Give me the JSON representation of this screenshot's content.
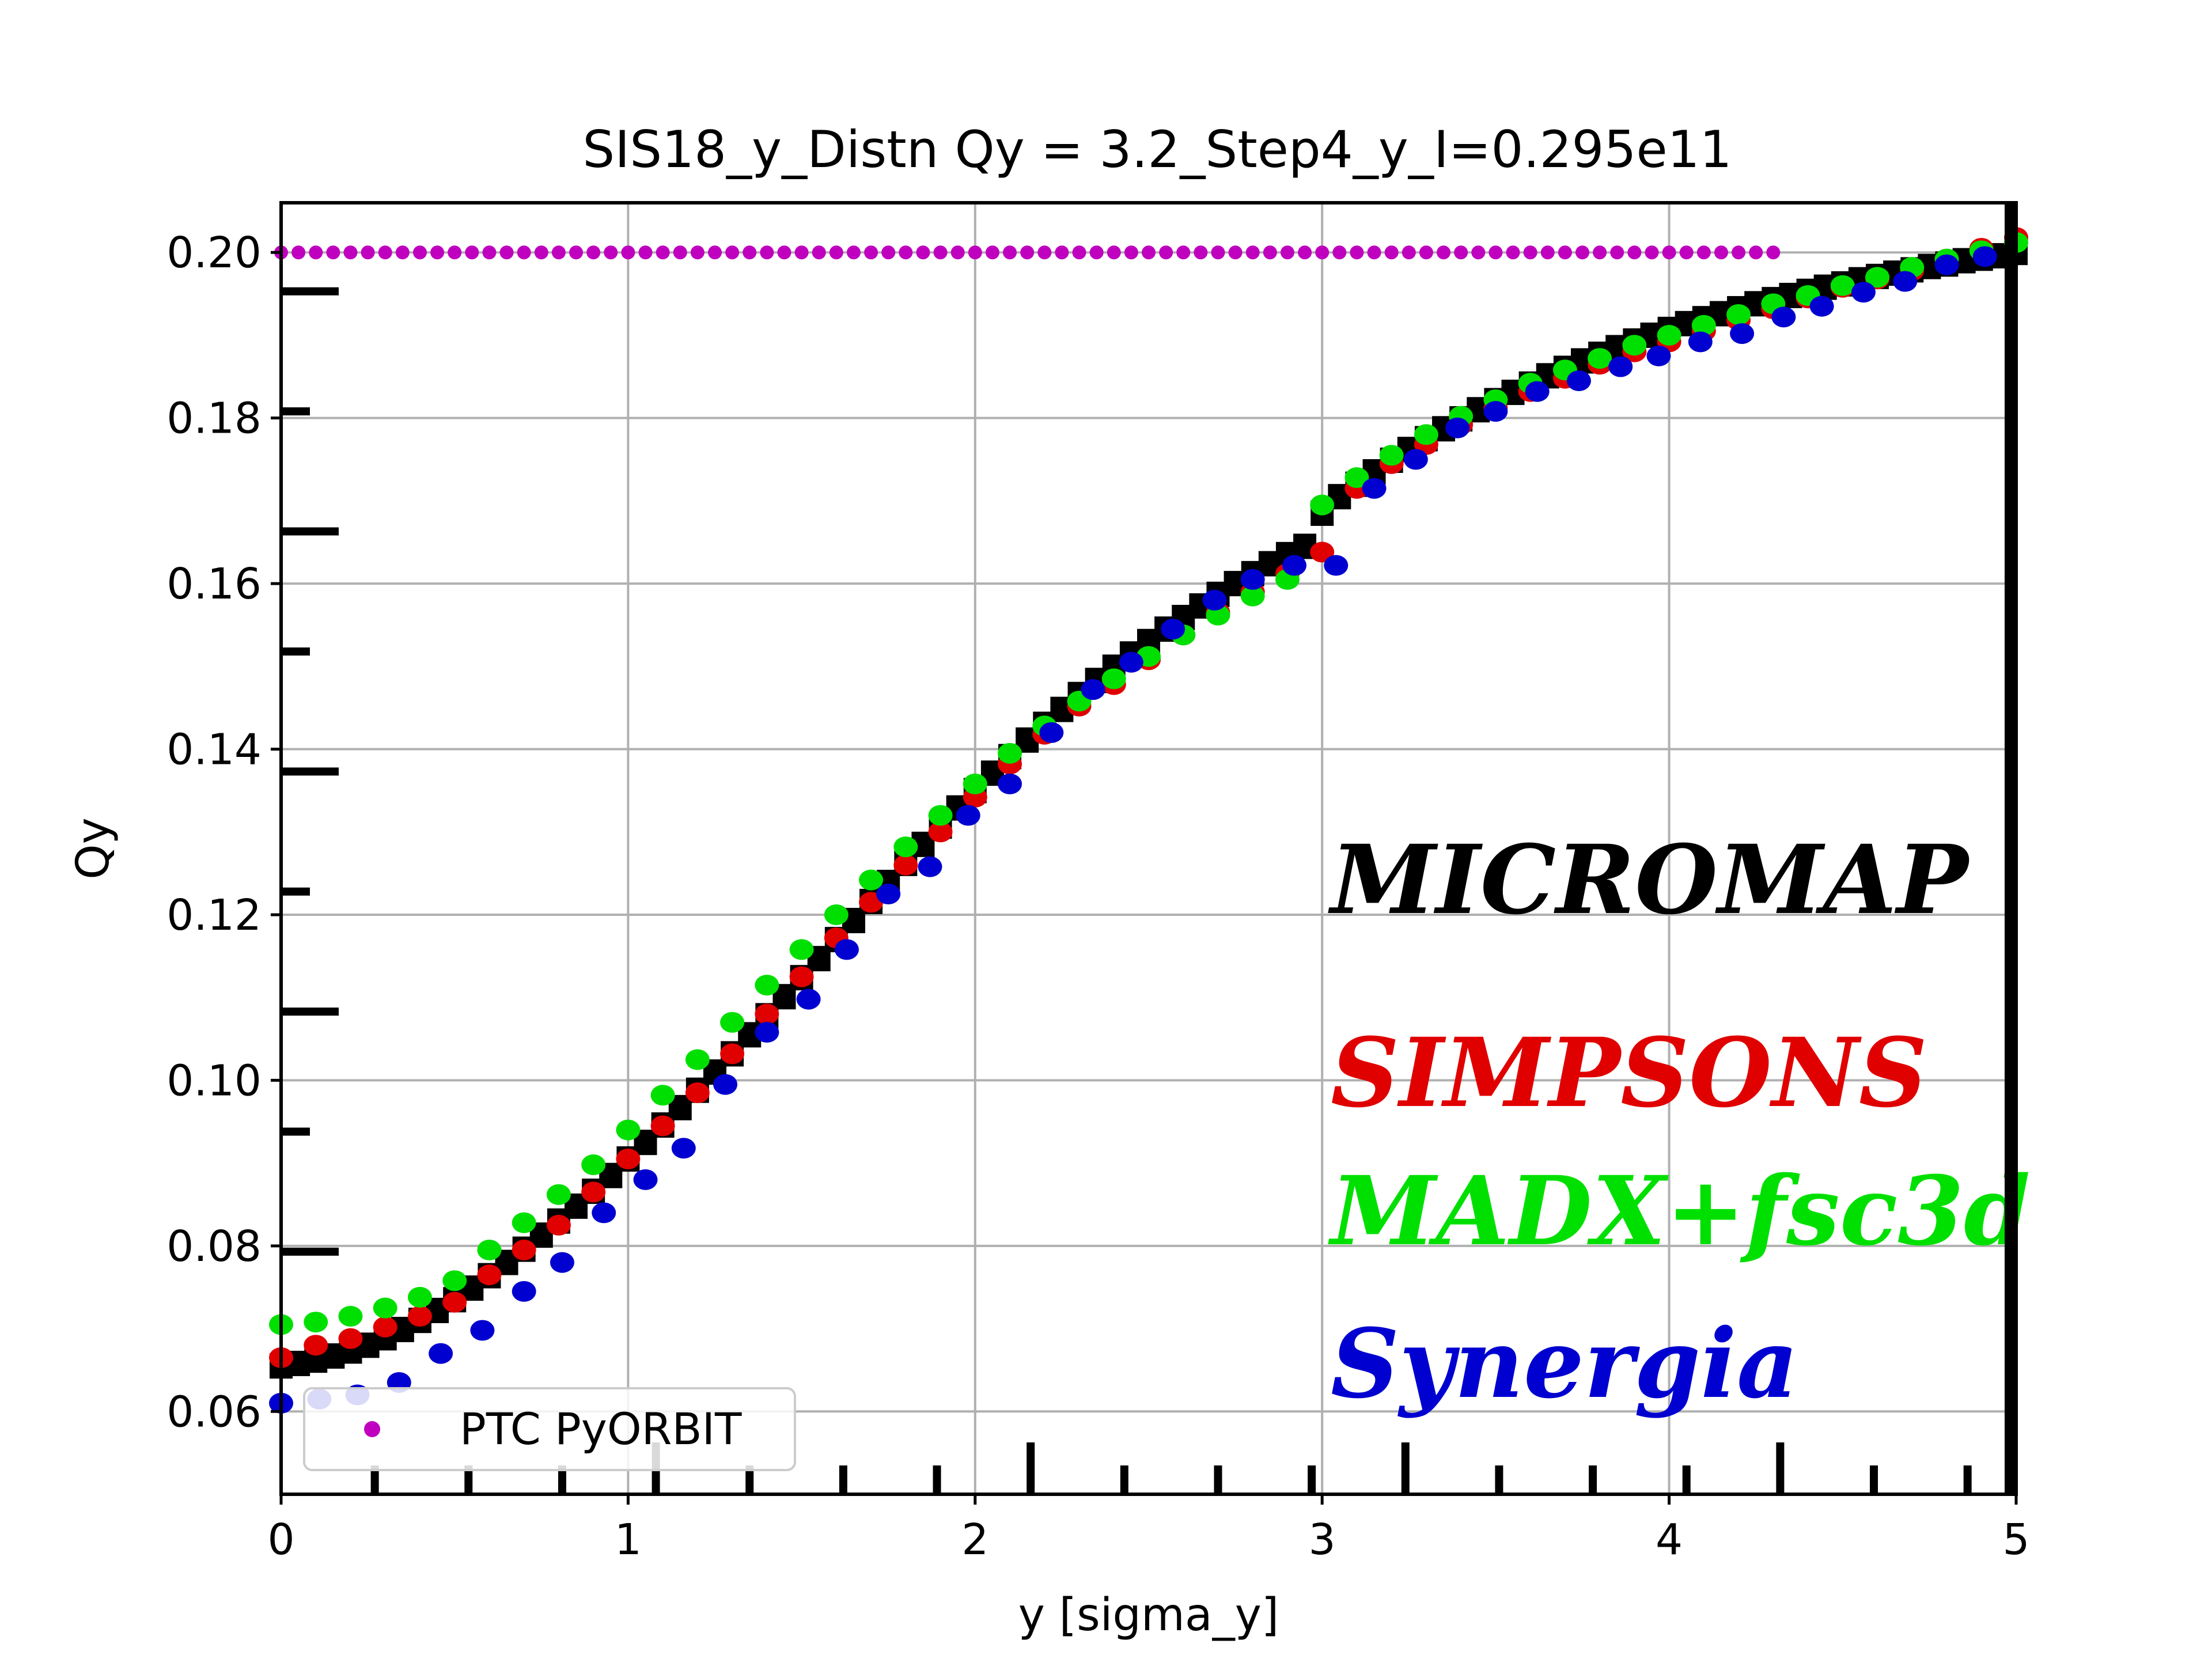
{
  "chart_data": {
    "type": "scatter",
    "title": "SIS18_y_Distn Qy = 3.2_Step4_y_I=0.295e11",
    "xlabel": "y [sigma_y]",
    "ylabel": "Qy",
    "xlim": [
      0,
      5
    ],
    "ylim": [
      0.05,
      0.206
    ],
    "xticks": [
      "0",
      "1",
      "2",
      "3",
      "4",
      "5"
    ],
    "yticks": [
      "0.06",
      "0.08",
      "0.10",
      "0.12",
      "0.14",
      "0.16",
      "0.18",
      "0.20"
    ],
    "grid": true,
    "legend": {
      "position": "lower-left",
      "entries": [
        {
          "name": "PTC PyORBIT",
          "color": "#bf00bf"
        }
      ]
    },
    "overlay_labels": [
      {
        "text": "MICROMAP",
        "color": "#000000"
      },
      {
        "text": "SIMPSONS",
        "color": "#e00000"
      },
      {
        "text": "MADX+fsc3d",
        "color": "#00e000"
      },
      {
        "text": "Synergia",
        "color": "#0000d0"
      }
    ],
    "series": [
      {
        "name": "PTC PyORBIT",
        "color": "#bf00bf",
        "x": [
          0.0,
          0.05,
          0.1,
          0.15,
          0.2,
          0.25,
          0.3,
          0.35,
          0.4,
          0.45,
          0.5,
          0.55,
          0.6,
          0.65,
          0.7,
          0.75,
          0.8,
          0.85,
          0.9,
          0.95,
          1.0,
          1.05,
          1.1,
          1.15,
          1.2,
          1.25,
          1.3,
          1.35,
          1.4,
          1.45,
          1.5,
          1.55,
          1.6,
          1.65,
          1.7,
          1.75,
          1.8,
          1.85,
          1.9,
          1.95,
          2.0,
          2.05,
          2.1,
          2.15,
          2.2,
          2.25,
          2.3,
          2.35,
          2.4,
          2.45,
          2.5,
          2.55,
          2.6,
          2.65,
          2.7,
          2.75,
          2.8,
          2.85,
          2.9,
          2.95,
          3.0,
          3.05,
          3.1,
          3.15,
          3.2,
          3.25,
          3.3,
          3.35,
          3.4,
          3.45,
          3.5,
          3.55,
          3.6,
          3.65,
          3.7,
          3.75,
          3.8,
          3.85,
          3.9,
          3.95,
          4.0,
          4.05,
          4.1,
          4.15,
          4.2,
          4.25,
          4.3
        ],
        "y": [
          0.2,
          0.2,
          0.2,
          0.2,
          0.2,
          0.2,
          0.2,
          0.2,
          0.2,
          0.2,
          0.2,
          0.2,
          0.2,
          0.2,
          0.2,
          0.2,
          0.2,
          0.2,
          0.2,
          0.2,
          0.2,
          0.2,
          0.2,
          0.2,
          0.2,
          0.2,
          0.2,
          0.2,
          0.2,
          0.2,
          0.2,
          0.2,
          0.2,
          0.2,
          0.2,
          0.2,
          0.2,
          0.2,
          0.2,
          0.2,
          0.2,
          0.2,
          0.2,
          0.2,
          0.2,
          0.2,
          0.2,
          0.2,
          0.2,
          0.2,
          0.2,
          0.2,
          0.2,
          0.2,
          0.2,
          0.2,
          0.2,
          0.2,
          0.2,
          0.2,
          0.2,
          0.2,
          0.2,
          0.2,
          0.2,
          0.2,
          0.2,
          0.2,
          0.2,
          0.2,
          0.2,
          0.2,
          0.2,
          0.2,
          0.2,
          0.2,
          0.2,
          0.2,
          0.2,
          0.2,
          0.2,
          0.2,
          0.2,
          0.2,
          0.2,
          0.2,
          0.2
        ]
      },
      {
        "name": "MICROMAP",
        "color": "#000000",
        "x": [
          0.0,
          0.05,
          0.1,
          0.15,
          0.2,
          0.25,
          0.3,
          0.35,
          0.4,
          0.45,
          0.5,
          0.55,
          0.6,
          0.65,
          0.7,
          0.75,
          0.8,
          0.85,
          0.9,
          0.95,
          1.0,
          1.05,
          1.1,
          1.15,
          1.2,
          1.25,
          1.3,
          1.35,
          1.4,
          1.45,
          1.5,
          1.55,
          1.6,
          1.65,
          1.7,
          1.75,
          1.8,
          1.85,
          1.9,
          1.95,
          2.0,
          2.05,
          2.1,
          2.15,
          2.2,
          2.25,
          2.3,
          2.35,
          2.4,
          2.45,
          2.5,
          2.55,
          2.6,
          2.65,
          2.7,
          2.75,
          2.8,
          2.85,
          2.9,
          2.95,
          3.0,
          3.05,
          3.1,
          3.15,
          3.2,
          3.25,
          3.3,
          3.35,
          3.4,
          3.45,
          3.5,
          3.55,
          3.6,
          3.65,
          3.7,
          3.75,
          3.8,
          3.85,
          3.9,
          3.95,
          4.0,
          4.05,
          4.1,
          4.15,
          4.2,
          4.25,
          4.3,
          4.35,
          4.4,
          4.45,
          4.5,
          4.55,
          4.6,
          4.65,
          4.7,
          4.75,
          4.8,
          4.85,
          4.9,
          4.95,
          5.0
        ],
        "y": [
          0.0655,
          0.0658,
          0.0662,
          0.0667,
          0.0673,
          0.068,
          0.0689,
          0.0699,
          0.071,
          0.0722,
          0.0735,
          0.0749,
          0.0764,
          0.078,
          0.0796,
          0.0813,
          0.083,
          0.0848,
          0.0866,
          0.0885,
          0.0905,
          0.0925,
          0.0946,
          0.0967,
          0.0988,
          0.101,
          0.1032,
          0.1055,
          0.1078,
          0.1101,
          0.1124,
          0.1147,
          0.117,
          0.1193,
          0.1216,
          0.1239,
          0.1262,
          0.1285,
          0.1307,
          0.1329,
          0.135,
          0.1371,
          0.1391,
          0.1411,
          0.143,
          0.1448,
          0.1466,
          0.1483,
          0.1499,
          0.1515,
          0.153,
          0.1545,
          0.1559,
          0.1573,
          0.1587,
          0.16,
          0.1612,
          0.1624,
          0.1635,
          0.1645,
          0.1685,
          0.1705,
          0.172,
          0.1735,
          0.1749,
          0.1762,
          0.1775,
          0.1787,
          0.1799,
          0.181,
          0.1821,
          0.1831,
          0.1841,
          0.1851,
          0.186,
          0.1869,
          0.1877,
          0.1885,
          0.1893,
          0.19,
          0.1907,
          0.1914,
          0.192,
          0.1926,
          0.1932,
          0.1938,
          0.1943,
          0.1948,
          0.1953,
          0.1958,
          0.1962,
          0.1967,
          0.1971,
          0.1975,
          0.1979,
          0.1983,
          0.1986,
          0.199,
          0.1993,
          0.1996,
          0.2
        ]
      },
      {
        "name": "SIMPSONS",
        "color": "#e00000",
        "x": [
          0.0,
          0.1,
          0.2,
          0.3,
          0.4,
          0.5,
          0.6,
          0.7,
          0.8,
          0.9,
          1.0,
          1.1,
          1.2,
          1.3,
          1.4,
          1.5,
          1.6,
          1.7,
          1.8,
          1.9,
          2.0,
          2.1,
          2.2,
          2.3,
          2.4,
          2.5,
          2.6,
          2.7,
          2.8,
          2.9,
          3.0,
          3.1,
          3.2,
          3.3,
          3.4,
          3.5,
          3.6,
          3.7,
          3.8,
          3.9,
          4.0,
          4.1,
          4.2,
          4.3,
          4.4,
          4.5,
          4.6,
          4.7,
          4.8,
          4.9,
          5.0
        ],
        "y": [
          0.0665,
          0.068,
          0.0688,
          0.0702,
          0.0715,
          0.0732,
          0.0765,
          0.0795,
          0.0825,
          0.0865,
          0.0905,
          0.0945,
          0.0985,
          0.1032,
          0.108,
          0.1125,
          0.1172,
          0.1215,
          0.126,
          0.13,
          0.1342,
          0.1382,
          0.1418,
          0.1452,
          0.1478,
          0.1508,
          0.1538,
          0.1565,
          0.159,
          0.1612,
          0.1638,
          0.1715,
          0.1745,
          0.1768,
          0.1792,
          0.1812,
          0.1832,
          0.1848,
          0.1865,
          0.188,
          0.1892,
          0.1905,
          0.1918,
          0.1932,
          0.1945,
          0.1958,
          0.1968,
          0.1978,
          0.1992,
          0.2005,
          0.2018
        ]
      },
      {
        "name": "MADX+fsc3d",
        "color": "#00e000",
        "x": [
          0.0,
          0.1,
          0.2,
          0.3,
          0.4,
          0.5,
          0.6,
          0.7,
          0.8,
          0.9,
          1.0,
          1.1,
          1.2,
          1.3,
          1.4,
          1.5,
          1.6,
          1.7,
          1.8,
          1.9,
          2.0,
          2.1,
          2.2,
          2.3,
          2.4,
          2.5,
          2.6,
          2.7,
          2.8,
          2.9,
          3.0,
          3.1,
          3.2,
          3.3,
          3.4,
          3.5,
          3.6,
          3.7,
          3.8,
          3.9,
          4.0,
          4.1,
          4.2,
          4.3,
          4.4,
          4.5,
          4.6,
          4.7,
          4.8,
          4.9,
          5.0
        ],
        "y": [
          0.0705,
          0.0708,
          0.0715,
          0.0725,
          0.0738,
          0.0758,
          0.0795,
          0.0828,
          0.0862,
          0.0898,
          0.094,
          0.0982,
          0.1025,
          0.107,
          0.1115,
          0.1158,
          0.12,
          0.1242,
          0.1282,
          0.132,
          0.1358,
          0.1395,
          0.1428,
          0.1458,
          0.1485,
          0.1512,
          0.1538,
          0.1562,
          0.1585,
          0.1605,
          0.1695,
          0.1728,
          0.1755,
          0.178,
          0.1802,
          0.1822,
          0.1842,
          0.1858,
          0.1872,
          0.1888,
          0.19,
          0.1912,
          0.1925,
          0.1938,
          0.1948,
          0.196,
          0.197,
          0.1982,
          0.1992,
          0.2002,
          0.2012
        ]
      },
      {
        "name": "Synergia",
        "color": "#0000d0",
        "x": [
          0.0,
          0.11,
          0.22,
          0.34,
          0.46,
          0.58,
          0.7,
          0.81,
          0.93,
          1.05,
          1.16,
          1.28,
          1.4,
          1.52,
          1.63,
          1.75,
          1.87,
          1.98,
          2.1,
          2.22,
          2.34,
          2.45,
          2.57,
          2.69,
          2.8,
          2.92,
          3.04,
          3.15,
          3.27,
          3.39,
          3.5,
          3.62,
          3.74,
          3.86,
          3.97,
          4.09,
          4.21,
          4.33,
          4.44,
          4.56,
          4.68,
          4.8,
          4.91
        ],
        "y": [
          0.061,
          0.0615,
          0.062,
          0.0635,
          0.067,
          0.0698,
          0.0745,
          0.078,
          0.084,
          0.088,
          0.0918,
          0.0995,
          0.1058,
          0.1098,
          0.1158,
          0.1225,
          0.1258,
          0.132,
          0.1358,
          0.142,
          0.1472,
          0.1505,
          0.1545,
          0.158,
          0.1605,
          0.1622,
          0.1622,
          0.1715,
          0.175,
          0.1788,
          0.1808,
          0.1832,
          0.1845,
          0.1862,
          0.1875,
          0.1892,
          0.1902,
          0.1922,
          0.1935,
          0.1952,
          0.1965,
          0.1985,
          0.1995
        ]
      }
    ]
  }
}
